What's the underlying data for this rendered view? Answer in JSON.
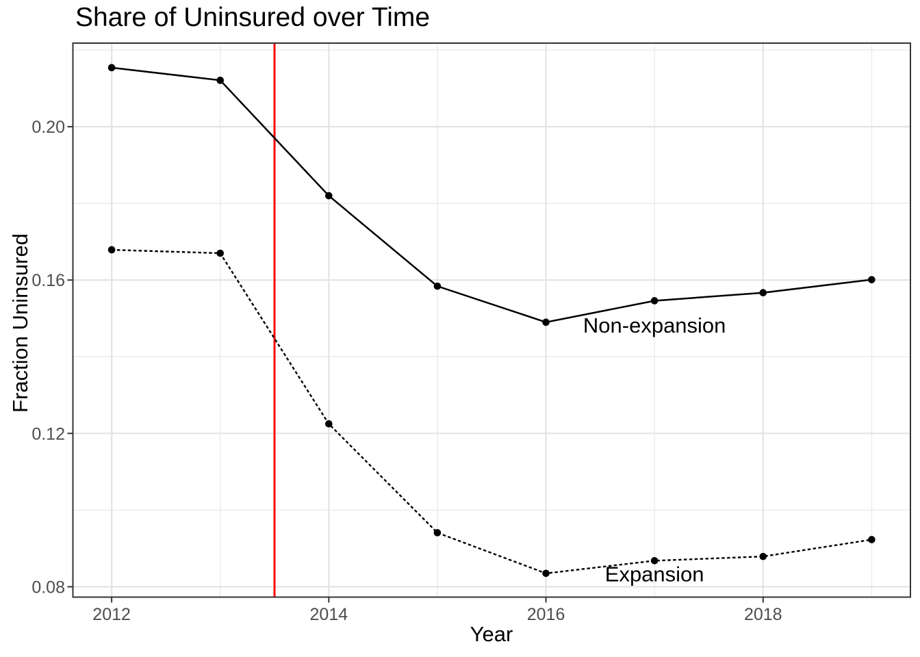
{
  "title": "Share of Uninsured over Time",
  "axes": {
    "x_label": "Year",
    "y_label": "Fraction Uninsured"
  },
  "colors": {
    "background": "#FFFFFF",
    "panel_background": "#FFFFFF",
    "panel_border": "#333333",
    "grid_major": "#E3E3E3",
    "grid_minor": "#EDEDED",
    "tick_mark": "#333333",
    "axis_text": "#4D4D4D",
    "text": "#000000",
    "series_color": "#000000",
    "vline_color": "#FF0000"
  },
  "chart_data": {
    "type": "line",
    "title": "Share of Uninsured over Time",
    "xlabel": "Year",
    "ylabel": "Fraction Uninsured",
    "x": [
      2012,
      2013,
      2014,
      2015,
      2016,
      2017,
      2018,
      2019
    ],
    "series": [
      {
        "name": "Non-expansion",
        "linestyle": "solid",
        "color": "#000000",
        "marker": "filled-circle",
        "values": [
          0.2154,
          0.2121,
          0.182,
          0.1584,
          0.149,
          0.1546,
          0.1567,
          0.1601
        ],
        "label": {
          "text": "Non-expansion",
          "x": 2017,
          "y": 0.1483
        }
      },
      {
        "name": "Expansion",
        "linestyle": "dashed",
        "color": "#000000",
        "marker": "filled-circle",
        "values": [
          0.1679,
          0.167,
          0.1225,
          0.0941,
          0.0835,
          0.0868,
          0.0879,
          0.0923
        ],
        "label": {
          "text": "Expansion",
          "x": 2017,
          "y": 0.0834
        }
      }
    ],
    "vline": {
      "x": 2013.5,
      "color": "#FF0000"
    },
    "x_major_ticks": [
      2012,
      2014,
      2016,
      2018
    ],
    "x_minor_ticks": [
      2013,
      2015,
      2017,
      2019
    ],
    "y_major_ticks": [
      0.08,
      0.12,
      0.16,
      0.2
    ],
    "y_minor_ticks": [
      0.1,
      0.14,
      0.18,
      0.22
    ],
    "y_tick_decimals": 2,
    "xlim": [
      2011.643,
      2019.357
    ],
    "ylim": [
      0.0773,
      0.2218
    ],
    "grid": "major+minor",
    "legend": "inline-text-annotations"
  }
}
